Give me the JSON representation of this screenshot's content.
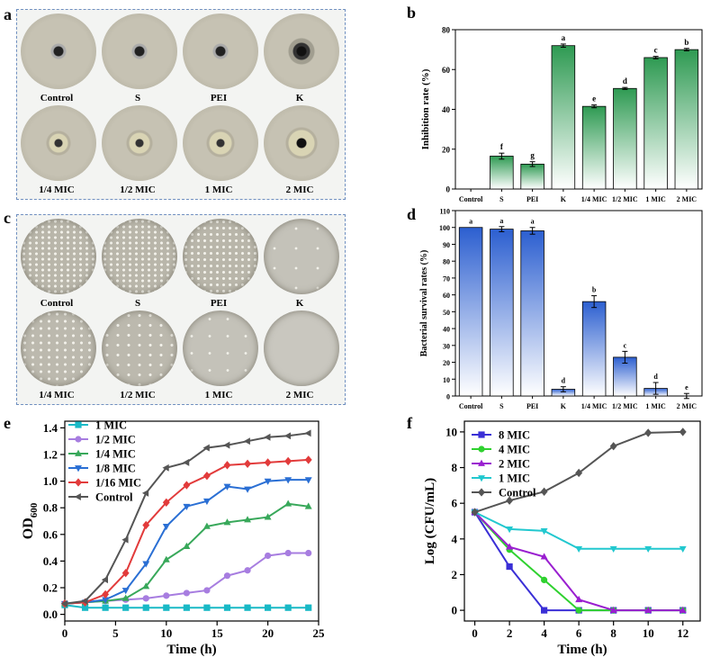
{
  "panel_letters": {
    "a": "a",
    "b": "b",
    "c": "c",
    "d": "d",
    "e": "e",
    "f": "f"
  },
  "plates_a": {
    "row1": [
      "Control",
      "S",
      "PEI",
      "K"
    ],
    "row2": [
      "1/4 MIC",
      "1/2 MIC",
      "1 MIC",
      "2 MIC"
    ]
  },
  "plates_c": {
    "row1": [
      "Control",
      "S",
      "PEI",
      "K"
    ],
    "row2": [
      "1/4 MIC",
      "1/2 MIC",
      "1 MIC",
      "2 MIC"
    ]
  },
  "colors": {
    "green_bar": "#2e9a52",
    "blue_bar": "#2c5fd0",
    "plate_bg": "#c9c5b5",
    "box_border": "#6f8fc0"
  },
  "chart_data": [
    {
      "id": "b",
      "type": "bar",
      "title": "",
      "xlabel": "",
      "ylabel": "Inhibition rate (%)",
      "categories": [
        "Control",
        "S",
        "PEI",
        "K",
        "1/4 MIC",
        "1/2 MIC",
        "1 MIC",
        "2 MIC"
      ],
      "values": [
        0,
        16.5,
        12.5,
        72,
        41.5,
        50.5,
        66,
        70
      ],
      "errors": [
        0,
        1.5,
        1.2,
        0.8,
        0.7,
        0.5,
        0.6,
        0.6
      ],
      "letters": [
        "",
        "f",
        "g",
        "a",
        "e",
        "d",
        "c",
        "b"
      ],
      "ylim": [
        0,
        80
      ],
      "yticks": [
        "0",
        "20",
        "40",
        "60",
        "80"
      ],
      "grid": false
    },
    {
      "id": "d",
      "type": "bar",
      "title": "",
      "xlabel": "",
      "ylabel": "Bacterial survival rates (%)",
      "categories": [
        "Control",
        "S",
        "PEI",
        "K",
        "1/4 MIC",
        "1/2 MIC",
        "1 MIC",
        "2 MIC"
      ],
      "values": [
        100,
        99,
        98,
        4,
        56,
        23,
        4.5,
        0
      ],
      "errors": [
        0,
        1.5,
        2,
        1.5,
        3.5,
        3.5,
        3.5,
        1.5
      ],
      "letters": [
        "a",
        "a",
        "a",
        "d",
        "b",
        "c",
        "d",
        "e"
      ],
      "ylim": [
        0,
        110
      ],
      "yticks": [
        "0",
        "10",
        "20",
        "30",
        "40",
        "50",
        "60",
        "70",
        "80",
        "90",
        "100",
        "110"
      ],
      "grid": false
    },
    {
      "id": "e",
      "type": "line",
      "title": "",
      "xlabel": "Time (h)",
      "ylabel_main": "OD",
      "ylabel_sub": "600",
      "xlim": [
        0,
        25
      ],
      "ylim": [
        -0.05,
        1.45
      ],
      "xticks": [
        "0",
        "5",
        "10",
        "15",
        "20",
        "25"
      ],
      "yticks": [
        "0.0",
        "0.2",
        "0.4",
        "0.6",
        "0.8",
        "1.0",
        "1.2",
        "1.4"
      ],
      "legend": "top-left",
      "x": [
        0,
        2,
        4,
        6,
        8,
        10,
        12,
        14,
        16,
        18,
        20,
        22,
        24
      ],
      "series": [
        {
          "name": "1 MIC",
          "color": "#19b9c6",
          "marker": "square",
          "values": [
            0.07,
            0.05,
            0.05,
            0.05,
            0.05,
            0.05,
            0.05,
            0.05,
            0.05,
            0.05,
            0.05,
            0.05,
            0.05
          ]
        },
        {
          "name": "1/2 MIC",
          "color": "#a77de0",
          "marker": "circle",
          "values": [
            0.08,
            0.09,
            0.1,
            0.11,
            0.12,
            0.14,
            0.16,
            0.18,
            0.29,
            0.33,
            0.44,
            0.46,
            0.46
          ]
        },
        {
          "name": "1/4 MIC",
          "color": "#38a85a",
          "marker": "triangle",
          "values": [
            0.08,
            0.09,
            0.1,
            0.12,
            0.21,
            0.41,
            0.51,
            0.66,
            0.69,
            0.71,
            0.73,
            0.83,
            0.81
          ]
        },
        {
          "name": "1/8 MIC",
          "color": "#2a6fd4",
          "marker": "triangle-down",
          "values": [
            0.08,
            0.09,
            0.11,
            0.18,
            0.38,
            0.66,
            0.81,
            0.85,
            0.96,
            0.94,
            1.0,
            1.01,
            1.01
          ]
        },
        {
          "name": "1/16 MIC",
          "color": "#e23b3b",
          "marker": "diamond",
          "values": [
            0.08,
            0.09,
            0.15,
            0.31,
            0.67,
            0.84,
            0.97,
            1.04,
            1.12,
            1.13,
            1.14,
            1.15,
            1.16
          ]
        },
        {
          "name": "Control",
          "color": "#555555",
          "marker": "triangle-left",
          "values": [
            0.08,
            0.1,
            0.26,
            0.56,
            0.91,
            1.1,
            1.14,
            1.25,
            1.27,
            1.3,
            1.33,
            1.34,
            1.36
          ]
        }
      ]
    },
    {
      "id": "f",
      "type": "line",
      "title": "",
      "xlabel": "Time (h)",
      "ylabel": "Log (CFU/mL)",
      "xlim": [
        -0.6,
        13
      ],
      "ylim": [
        -0.6,
        10.6
      ],
      "xticks": [
        "0",
        "2",
        "4",
        "6",
        "8",
        "10",
        "12"
      ],
      "yticks": [
        "0",
        "2",
        "4",
        "6",
        "8",
        "10"
      ],
      "legend": "top-left",
      "x": [
        0,
        2,
        4,
        6,
        8,
        10,
        12
      ],
      "series": [
        {
          "name": "8 MIC",
          "color": "#3a2fd6",
          "marker": "square",
          "values": [
            5.5,
            2.45,
            0,
            0,
            0,
            0,
            0
          ]
        },
        {
          "name": "4 MIC",
          "color": "#2fd12f",
          "marker": "circle",
          "values": [
            5.5,
            3.4,
            1.7,
            0,
            0,
            0,
            0
          ]
        },
        {
          "name": "2 MIC",
          "color": "#9a1fd0",
          "marker": "triangle",
          "values": [
            5.5,
            3.55,
            3.0,
            0.6,
            0,
            0,
            0
          ]
        },
        {
          "name": "1 MIC",
          "color": "#22c8cf",
          "marker": "triangle-down",
          "values": [
            5.5,
            4.55,
            4.45,
            3.45,
            3.45,
            3.45,
            3.45
          ]
        },
        {
          "name": "Control",
          "color": "#555555",
          "marker": "diamond",
          "values": [
            5.5,
            6.15,
            6.65,
            7.7,
            9.2,
            9.95,
            10.0
          ]
        }
      ]
    }
  ]
}
